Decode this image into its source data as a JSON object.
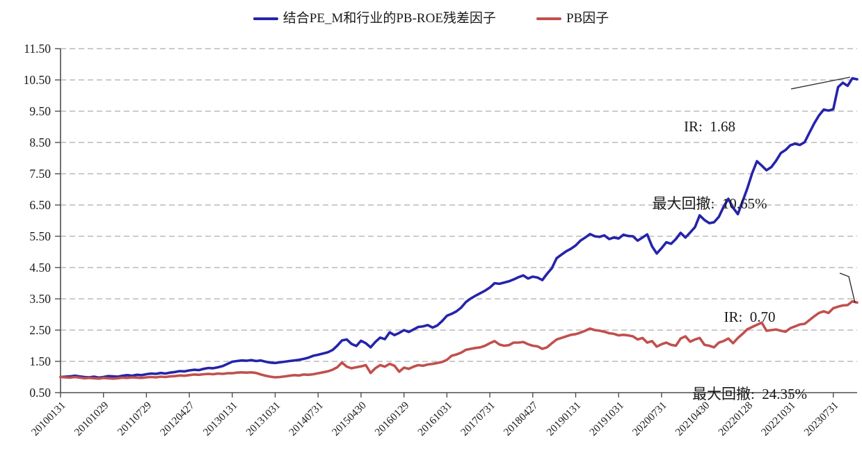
{
  "page": {
    "background": "#FFFFFF"
  },
  "legend": {
    "items": [
      {
        "label": "结合PE_M和行业的PB-ROE残差因子",
        "color": "#2424AA",
        "marker": "line"
      },
      {
        "label": "PB因子",
        "color": "#C0504D",
        "marker": "line"
      }
    ]
  },
  "chart_data": {
    "type": "line",
    "title": "",
    "xlabel": "",
    "ylabel": "",
    "grid": "horizontal-dashed",
    "grid_color": "#ACACAC",
    "axis_color": "#4D4D4D",
    "legend_position": "top-center",
    "x_axis": {
      "start_month": "2010-01",
      "months_total": 168,
      "tick_labels": [
        "20100131",
        "20101029",
        "20110729",
        "20120427",
        "20130131",
        "20131031",
        "20140731",
        "20150430",
        "20160129",
        "20161031",
        "20170731",
        "20180427",
        "20190131",
        "20191031",
        "20200731",
        "20210430",
        "20220128",
        "20221031",
        "20230731"
      ],
      "tick_month_index": [
        0,
        9,
        18,
        27,
        36,
        45,
        54,
        63,
        72,
        81,
        90,
        99,
        108,
        117,
        126,
        135,
        144,
        153,
        162
      ]
    },
    "y_axis": {
      "min": 0.5,
      "max": 11.5,
      "step": 1.0,
      "tick_labels": [
        "0.50",
        "1.50",
        "2.50",
        "3.50",
        "4.50",
        "5.50",
        "6.50",
        "7.50",
        "8.50",
        "9.50",
        "10.50",
        "11.50"
      ]
    },
    "series": [
      {
        "name": "结合PE_M和行业的PB-ROE残差因子",
        "color": "#2424AA",
        "ir": "1.68",
        "max_drawdown": "10.65%",
        "values": [
          1.0,
          1.01,
          1.02,
          1.04,
          1.02,
          1.0,
          0.99,
          1.01,
          0.98,
          1.0,
          1.03,
          1.02,
          1.01,
          1.04,
          1.06,
          1.04,
          1.07,
          1.06,
          1.09,
          1.11,
          1.1,
          1.13,
          1.11,
          1.14,
          1.16,
          1.19,
          1.18,
          1.21,
          1.23,
          1.22,
          1.26,
          1.29,
          1.28,
          1.31,
          1.35,
          1.42,
          1.49,
          1.51,
          1.53,
          1.52,
          1.54,
          1.51,
          1.53,
          1.49,
          1.46,
          1.45,
          1.47,
          1.49,
          1.51,
          1.53,
          1.55,
          1.58,
          1.62,
          1.68,
          1.71,
          1.75,
          1.79,
          1.86,
          2.0,
          2.17,
          2.2,
          2.06,
          1.99,
          2.16,
          2.08,
          1.95,
          2.12,
          2.26,
          2.21,
          2.43,
          2.34,
          2.41,
          2.5,
          2.44,
          2.52,
          2.6,
          2.62,
          2.66,
          2.58,
          2.65,
          2.79,
          2.96,
          3.02,
          3.1,
          3.22,
          3.4,
          3.51,
          3.6,
          3.68,
          3.76,
          3.86,
          4.0,
          3.98,
          4.02,
          4.06,
          4.12,
          4.19,
          4.25,
          4.15,
          4.21,
          4.18,
          4.1,
          4.3,
          4.48,
          4.8,
          4.91,
          5.02,
          5.1,
          5.21,
          5.36,
          5.46,
          5.57,
          5.5,
          5.48,
          5.53,
          5.41,
          5.46,
          5.43,
          5.55,
          5.51,
          5.5,
          5.36,
          5.46,
          5.56,
          5.18,
          4.95,
          5.12,
          5.31,
          5.26,
          5.41,
          5.61,
          5.46,
          5.62,
          5.79,
          6.17,
          6.02,
          5.92,
          5.95,
          6.12,
          6.44,
          6.7,
          6.41,
          6.21,
          6.62,
          7.04,
          7.52,
          7.9,
          7.76,
          7.61,
          7.71,
          7.91,
          8.16,
          8.26,
          8.41,
          8.46,
          8.42,
          8.51,
          8.81,
          9.11,
          9.36,
          9.55,
          9.52,
          9.56,
          10.27,
          10.41,
          10.31,
          10.55,
          10.52
        ]
      },
      {
        "name": "PB因子",
        "color": "#C0504D",
        "ir": "0.70",
        "max_drawdown": "24.35%",
        "values": [
          1.0,
          0.99,
          0.98,
          1.0,
          0.98,
          0.96,
          0.97,
          0.96,
          0.95,
          0.97,
          0.96,
          0.95,
          0.96,
          0.98,
          0.97,
          0.99,
          0.98,
          0.97,
          0.99,
          1.0,
          0.99,
          1.01,
          1.0,
          1.02,
          1.03,
          1.05,
          1.04,
          1.06,
          1.08,
          1.07,
          1.09,
          1.1,
          1.09,
          1.11,
          1.1,
          1.12,
          1.12,
          1.14,
          1.15,
          1.14,
          1.15,
          1.13,
          1.08,
          1.04,
          1.01,
          0.99,
          1.0,
          1.02,
          1.04,
          1.06,
          1.05,
          1.08,
          1.07,
          1.09,
          1.12,
          1.15,
          1.18,
          1.23,
          1.31,
          1.46,
          1.33,
          1.28,
          1.31,
          1.34,
          1.38,
          1.13,
          1.28,
          1.38,
          1.33,
          1.42,
          1.36,
          1.17,
          1.3,
          1.26,
          1.33,
          1.38,
          1.36,
          1.4,
          1.42,
          1.45,
          1.48,
          1.55,
          1.68,
          1.72,
          1.78,
          1.87,
          1.9,
          1.93,
          1.95,
          2.0,
          2.08,
          2.15,
          2.04,
          2.0,
          2.02,
          2.1,
          2.1,
          2.12,
          2.05,
          2.0,
          1.98,
          1.9,
          1.95,
          2.08,
          2.2,
          2.25,
          2.3,
          2.35,
          2.37,
          2.42,
          2.48,
          2.55,
          2.5,
          2.48,
          2.45,
          2.4,
          2.38,
          2.33,
          2.35,
          2.33,
          2.3,
          2.2,
          2.25,
          2.1,
          2.15,
          1.97,
          2.05,
          2.1,
          2.03,
          2.0,
          2.23,
          2.3,
          2.13,
          2.2,
          2.25,
          2.03,
          2.0,
          1.95,
          2.1,
          2.15,
          2.23,
          2.08,
          2.25,
          2.38,
          2.53,
          2.6,
          2.67,
          2.74,
          2.48,
          2.5,
          2.52,
          2.48,
          2.45,
          2.56,
          2.62,
          2.68,
          2.7,
          2.82,
          2.94,
          3.05,
          3.1,
          3.05,
          3.2,
          3.25,
          3.29,
          3.3,
          3.42,
          3.38
        ]
      }
    ],
    "annotations": [
      {
        "lines": [
          "IR:  1.68",
          "最大回撤:  10.65%"
        ],
        "series": "结合PE_M和行业的PB-ROE残差因子"
      },
      {
        "lines": [
          "IR:  0.70",
          "最大回撤:  24.35%"
        ],
        "series": "PB因子"
      }
    ]
  }
}
